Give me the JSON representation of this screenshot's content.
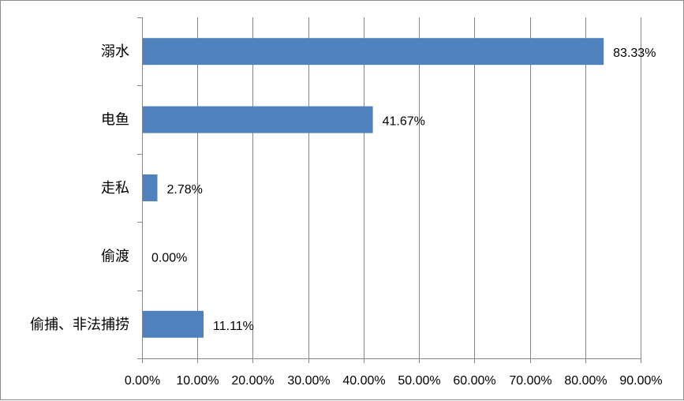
{
  "chart_data": {
    "type": "bar",
    "orientation": "horizontal",
    "categories": [
      "溺水",
      "电鱼",
      "走私",
      "偷渡",
      "偷捕、非法捕捞"
    ],
    "values": [
      83.33,
      41.67,
      2.78,
      0.0,
      11.11
    ],
    "data_labels": [
      "83.33%",
      "41.67%",
      "2.78%",
      "0.00%",
      "11.11%"
    ],
    "xlim": [
      0,
      90
    ],
    "x_ticks": [
      0,
      10,
      20,
      30,
      40,
      50,
      60,
      70,
      80,
      90
    ],
    "x_tick_labels": [
      "0.00%",
      "10.00%",
      "20.00%",
      "30.00%",
      "40.00%",
      "50.00%",
      "60.00%",
      "70.00%",
      "80.00%",
      "90.00%"
    ],
    "title": "",
    "xlabel": "",
    "ylabel": "",
    "grid": "vertical major gridlines",
    "legend": "none",
    "colors": {
      "bar": "#4f81bd",
      "grid": "#868686",
      "axis": "#868686",
      "border": "#8c8c8c"
    }
  }
}
